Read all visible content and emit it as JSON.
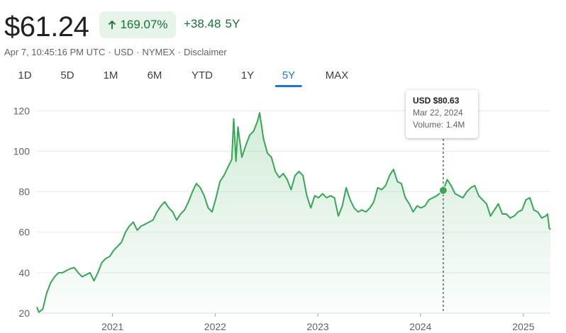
{
  "header": {
    "price": "$61.24",
    "percent_change": "169.07%",
    "abs_change": "+38.48",
    "period": "5Y",
    "meta": [
      "Apr 7, 10:45:16 PM UTC",
      "USD",
      "NYMEX",
      "Disclaimer"
    ]
  },
  "tabs": [
    "1D",
    "5D",
    "1M",
    "6M",
    "YTD",
    "1Y",
    "5Y",
    "MAX"
  ],
  "active_tab": "5Y",
  "tooltip": {
    "price": "USD $80.63",
    "date": "Mar 22, 2024",
    "volume": "Volume: 1.4M"
  },
  "colors": {
    "line": "#34a853",
    "positive_text": "#137333",
    "badge_bg": "#e6f4ea",
    "accent": "#1a73e8"
  },
  "chart_data": {
    "type": "area",
    "x_label_ticks": [
      "2021",
      "2022",
      "2023",
      "2024",
      "2025"
    ],
    "y_ticks": [
      20,
      40,
      60,
      80,
      100,
      120
    ],
    "ylim": [
      20,
      125
    ],
    "xlim": [
      "2020-04-07",
      "2025-04-07"
    ],
    "grid": "horizontal",
    "highlight": {
      "x": "2024-03-22",
      "y": 80.63
    },
    "series": [
      {
        "values": [
          [
            "2020-04-07",
            23
          ],
          [
            "2020-04-14",
            20.5
          ],
          [
            "2020-04-28",
            22
          ],
          [
            "2020-05-12",
            30
          ],
          [
            "2020-05-26",
            35
          ],
          [
            "2020-06-09",
            38
          ],
          [
            "2020-06-23",
            40
          ],
          [
            "2020-07-07",
            40
          ],
          [
            "2020-07-21",
            41
          ],
          [
            "2020-08-04",
            42
          ],
          [
            "2020-08-18",
            42.5
          ],
          [
            "2020-09-01",
            40
          ],
          [
            "2020-09-15",
            38
          ],
          [
            "2020-09-29",
            39
          ],
          [
            "2020-10-13",
            40
          ],
          [
            "2020-10-27",
            36
          ],
          [
            "2020-11-10",
            40
          ],
          [
            "2020-11-24",
            45
          ],
          [
            "2020-12-08",
            47
          ],
          [
            "2020-12-22",
            48
          ],
          [
            "2021-01-05",
            51
          ],
          [
            "2021-01-19",
            53
          ],
          [
            "2021-02-02",
            55
          ],
          [
            "2021-02-16",
            60
          ],
          [
            "2021-03-02",
            63
          ],
          [
            "2021-03-16",
            65
          ],
          [
            "2021-03-30",
            61
          ],
          [
            "2021-04-13",
            63
          ],
          [
            "2021-04-27",
            64
          ],
          [
            "2021-05-11",
            65
          ],
          [
            "2021-05-25",
            66
          ],
          [
            "2021-06-08",
            70
          ],
          [
            "2021-06-22",
            73
          ],
          [
            "2021-07-06",
            75
          ],
          [
            "2021-07-20",
            72
          ],
          [
            "2021-08-03",
            70
          ],
          [
            "2021-08-17",
            66
          ],
          [
            "2021-08-31",
            69
          ],
          [
            "2021-09-14",
            71
          ],
          [
            "2021-09-28",
            75
          ],
          [
            "2021-10-12",
            80
          ],
          [
            "2021-10-26",
            84
          ],
          [
            "2021-11-09",
            82
          ],
          [
            "2021-11-23",
            78
          ],
          [
            "2021-12-07",
            72
          ],
          [
            "2021-12-21",
            70
          ],
          [
            "2022-01-04",
            77
          ],
          [
            "2022-01-18",
            85
          ],
          [
            "2022-02-01",
            88
          ],
          [
            "2022-02-15",
            92
          ],
          [
            "2022-03-01",
            96
          ],
          [
            "2022-03-08",
            116
          ],
          [
            "2022-03-16",
            95
          ],
          [
            "2022-03-23",
            112
          ],
          [
            "2022-04-06",
            97
          ],
          [
            "2022-04-20",
            103
          ],
          [
            "2022-05-04",
            108
          ],
          [
            "2022-05-18",
            110
          ],
          [
            "2022-06-01",
            115
          ],
          [
            "2022-06-08",
            119
          ],
          [
            "2022-06-22",
            106
          ],
          [
            "2022-07-06",
            99
          ],
          [
            "2022-07-20",
            97
          ],
          [
            "2022-08-03",
            90
          ],
          [
            "2022-08-17",
            87
          ],
          [
            "2022-08-31",
            89
          ],
          [
            "2022-09-14",
            86
          ],
          [
            "2022-09-28",
            81
          ],
          [
            "2022-10-12",
            88
          ],
          [
            "2022-10-26",
            90
          ],
          [
            "2022-11-09",
            88
          ],
          [
            "2022-11-23",
            78
          ],
          [
            "2022-12-07",
            72
          ],
          [
            "2022-12-21",
            78
          ],
          [
            "2023-01-04",
            77
          ],
          [
            "2023-01-18",
            79
          ],
          [
            "2023-02-01",
            77
          ],
          [
            "2023-02-15",
            78
          ],
          [
            "2023-03-01",
            77
          ],
          [
            "2023-03-15",
            68
          ],
          [
            "2023-03-29",
            73
          ],
          [
            "2023-04-12",
            82
          ],
          [
            "2023-04-26",
            76
          ],
          [
            "2023-05-10",
            72
          ],
          [
            "2023-05-24",
            70
          ],
          [
            "2023-06-07",
            71
          ],
          [
            "2023-06-21",
            70
          ],
          [
            "2023-07-05",
            72
          ],
          [
            "2023-07-19",
            75
          ],
          [
            "2023-08-02",
            82
          ],
          [
            "2023-08-16",
            81
          ],
          [
            "2023-08-30",
            83
          ],
          [
            "2023-09-13",
            88
          ],
          [
            "2023-09-27",
            91
          ],
          [
            "2023-10-11",
            85
          ],
          [
            "2023-10-25",
            84
          ],
          [
            "2023-11-08",
            77
          ],
          [
            "2023-11-22",
            74
          ],
          [
            "2023-12-06",
            70
          ],
          [
            "2023-12-20",
            73
          ],
          [
            "2024-01-03",
            72
          ],
          [
            "2024-01-17",
            73
          ],
          [
            "2024-01-31",
            76
          ],
          [
            "2024-02-14",
            77
          ],
          [
            "2024-02-28",
            78
          ],
          [
            "2024-03-08",
            79
          ],
          [
            "2024-03-22",
            80.63
          ],
          [
            "2024-04-05",
            86
          ],
          [
            "2024-04-19",
            83
          ],
          [
            "2024-05-03",
            79
          ],
          [
            "2024-05-17",
            78
          ],
          [
            "2024-05-31",
            77
          ],
          [
            "2024-06-14",
            80
          ],
          [
            "2024-06-28",
            82
          ],
          [
            "2024-07-12",
            83
          ],
          [
            "2024-07-26",
            78
          ],
          [
            "2024-08-09",
            76
          ],
          [
            "2024-08-23",
            74
          ],
          [
            "2024-09-06",
            68
          ],
          [
            "2024-09-20",
            71
          ],
          [
            "2024-10-04",
            74
          ],
          [
            "2024-10-18",
            69
          ],
          [
            "2024-11-01",
            69
          ],
          [
            "2024-11-15",
            67
          ],
          [
            "2024-11-29",
            68
          ],
          [
            "2024-12-13",
            70
          ],
          [
            "2024-12-27",
            71
          ],
          [
            "2025-01-10",
            76
          ],
          [
            "2025-01-24",
            77
          ],
          [
            "2025-02-07",
            71
          ],
          [
            "2025-02-21",
            70
          ],
          [
            "2025-03-07",
            67
          ],
          [
            "2025-03-21",
            68
          ],
          [
            "2025-03-28",
            69
          ],
          [
            "2025-04-03",
            62
          ],
          [
            "2025-04-07",
            61.24
          ]
        ]
      }
    ]
  }
}
